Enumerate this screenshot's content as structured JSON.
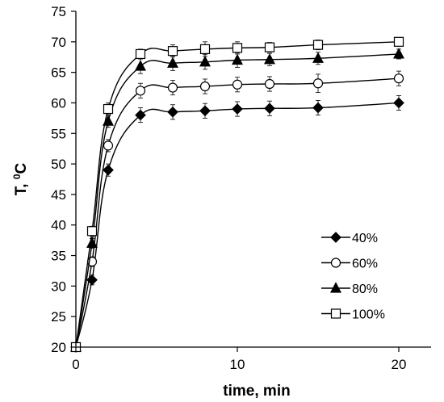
{
  "chart_data": {
    "type": "line",
    "title": "",
    "xlabel": "time, min",
    "ylabel_main": "T, ",
    "ylabel_sup": "0",
    "ylabel_tail": "C",
    "xlim": [
      0,
      22
    ],
    "ylim": [
      20,
      75
    ],
    "xticks": [
      0,
      10,
      20
    ],
    "yticks": [
      20,
      25,
      30,
      35,
      40,
      45,
      50,
      55,
      60,
      65,
      70,
      75
    ],
    "grid": false,
    "legend_position": "right-middle",
    "x": [
      0,
      1,
      2,
      4,
      6,
      8,
      10,
      12,
      15,
      20
    ],
    "series": [
      {
        "name": "40%",
        "marker": "filled-diamond",
        "values": [
          20,
          31,
          49,
          58,
          58.5,
          58.7,
          59,
          59.1,
          59.2,
          60
        ],
        "errors": [
          0,
          0.8,
          1,
          1.2,
          1.2,
          1.2,
          1.2,
          1.2,
          1.2,
          1.2
        ]
      },
      {
        "name": "60%",
        "marker": "open-circle",
        "values": [
          20,
          34,
          53,
          62,
          62.5,
          62.7,
          63,
          63.1,
          63.2,
          64
        ],
        "errors": [
          0,
          0.8,
          1,
          1.2,
          1.2,
          1.2,
          1.2,
          1.2,
          1.5,
          1.2
        ]
      },
      {
        "name": "80%",
        "marker": "filled-triangle",
        "values": [
          20,
          37,
          57,
          66,
          66.5,
          66.7,
          67,
          67.1,
          67.3,
          68
        ],
        "errors": [
          0,
          0.8,
          1,
          1.2,
          1.2,
          1.2,
          1.2,
          1,
          1,
          0.8
        ]
      },
      {
        "name": "100%",
        "marker": "open-square",
        "values": [
          20,
          39,
          59,
          68,
          68.5,
          68.8,
          69,
          69.1,
          69.5,
          70
        ],
        "errors": [
          0,
          0.8,
          1,
          0.8,
          1,
          1.2,
          1,
          0.8,
          0.8,
          0.5
        ]
      }
    ]
  }
}
